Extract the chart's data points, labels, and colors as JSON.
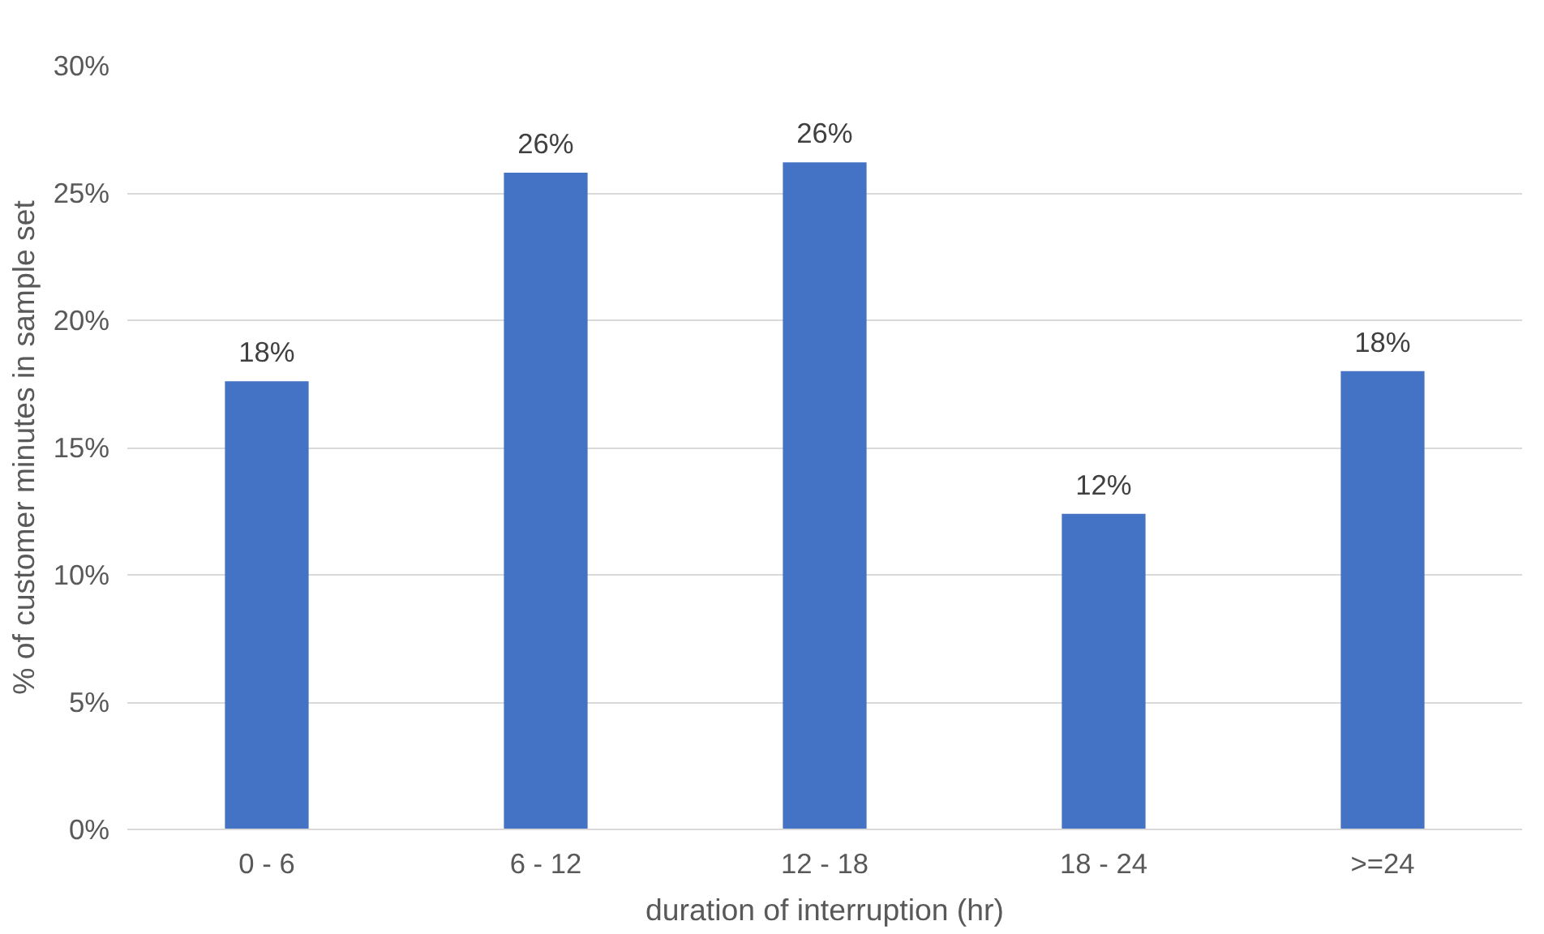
{
  "chart_data": {
    "type": "bar",
    "xlabel": "duration of interruption (hr)",
    "ylabel": "% of customer minutes in sample set",
    "categories": [
      "0 - 6",
      "6 - 12",
      "12 - 18",
      "18 - 24",
      ">=24"
    ],
    "values": [
      17.6,
      25.8,
      26.2,
      12.4,
      18.0
    ],
    "value_labels": [
      "18%",
      "26%",
      "26%",
      "12%",
      "18%"
    ],
    "color": "#4472c4",
    "ylim": [
      0,
      30
    ],
    "yticks": [
      {
        "value": 0,
        "label": "0%"
      },
      {
        "value": 5,
        "label": "5%"
      },
      {
        "value": 10,
        "label": "10%"
      },
      {
        "value": 15,
        "label": "15%"
      },
      {
        "value": 20,
        "label": "20%"
      },
      {
        "value": 25,
        "label": "25%"
      },
      {
        "value": 30,
        "label": "30%"
      }
    ],
    "grid": "y"
  }
}
